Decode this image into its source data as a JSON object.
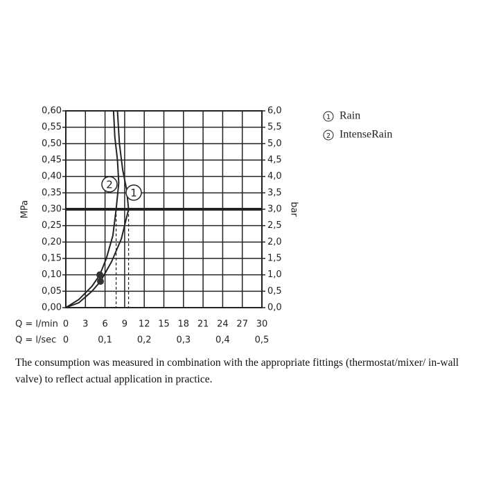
{
  "chart_data": {
    "type": "line",
    "xlabel": "Q = l/min",
    "x2label": "Q = l/sec",
    "ylabel": "MPa",
    "y2label": "bar",
    "xlim": [
      0,
      30
    ],
    "xticks": [
      0,
      3,
      6,
      9,
      12,
      15,
      18,
      21,
      24,
      27,
      30
    ],
    "x2lim": [
      0,
      0.5
    ],
    "x2ticks": [
      {
        "value": 0,
        "label": "0"
      },
      {
        "value": 0.1,
        "label": "0,1"
      },
      {
        "value": 0.2,
        "label": "0,2"
      },
      {
        "value": 0.3,
        "label": "0,3"
      },
      {
        "value": 0.4,
        "label": "0,4"
      },
      {
        "value": 0.5,
        "label": "0,5"
      }
    ],
    "ylim": [
      0,
      0.6
    ],
    "yticks": [
      {
        "value": 0,
        "label": "0,00"
      },
      {
        "value": 0.05,
        "label": "0,05"
      },
      {
        "value": 0.1,
        "label": "0,10"
      },
      {
        "value": 0.15,
        "label": "0,15"
      },
      {
        "value": 0.2,
        "label": "0,20"
      },
      {
        "value": 0.25,
        "label": "0,25"
      },
      {
        "value": 0.3,
        "label": "0,30"
      },
      {
        "value": 0.35,
        "label": "0,35"
      },
      {
        "value": 0.4,
        "label": "0,40"
      },
      {
        "value": 0.45,
        "label": "0,45"
      },
      {
        "value": 0.5,
        "label": "0,50"
      },
      {
        "value": 0.55,
        "label": "0,55"
      },
      {
        "value": 0.6,
        "label": "0,60"
      }
    ],
    "y2lim": [
      0,
      6
    ],
    "y2ticks": [
      {
        "value": 0,
        "label": "0,0"
      },
      {
        "value": 0.5,
        "label": "0,5"
      },
      {
        "value": 1,
        "label": "1,0"
      },
      {
        "value": 1.5,
        "label": "1,5"
      },
      {
        "value": 2,
        "label": "2,0"
      },
      {
        "value": 2.5,
        "label": "2,5"
      },
      {
        "value": 3,
        "label": "3,0"
      },
      {
        "value": 3.5,
        "label": "3,5"
      },
      {
        "value": 4,
        "label": "4,0"
      },
      {
        "value": 4.5,
        "label": "4,5"
      },
      {
        "value": 5,
        "label": "5,0"
      },
      {
        "value": 5.5,
        "label": "5,5"
      },
      {
        "value": 6,
        "label": "6,0"
      }
    ],
    "grid": true,
    "hline": 0.3,
    "series": [
      {
        "name": "Rain",
        "label": "1",
        "color": "#222222",
        "x": [
          0,
          2,
          4,
          5.3,
          7,
          8.5,
          9.6,
          9.3,
          8.7,
          8.2,
          7.9
        ],
        "values": [
          0,
          0.015,
          0.05,
          0.08,
          0.14,
          0.21,
          0.3,
          0.36,
          0.42,
          0.5,
          0.6
        ]
      },
      {
        "name": "IntenseRain",
        "label": "2",
        "color": "#222222",
        "x": [
          0,
          2,
          4,
          5.2,
          6.2,
          7.2,
          7.7,
          8.1,
          7.9,
          7.5,
          7.3
        ],
        "values": [
          0,
          0.025,
          0.065,
          0.1,
          0.15,
          0.22,
          0.3,
          0.38,
          0.45,
          0.52,
          0.6
        ]
      }
    ],
    "note": "The consumption was measured in combination with the appropriate fittings (thermostat/mixer/ in-wall valve) to reflect actual application in practice."
  }
}
